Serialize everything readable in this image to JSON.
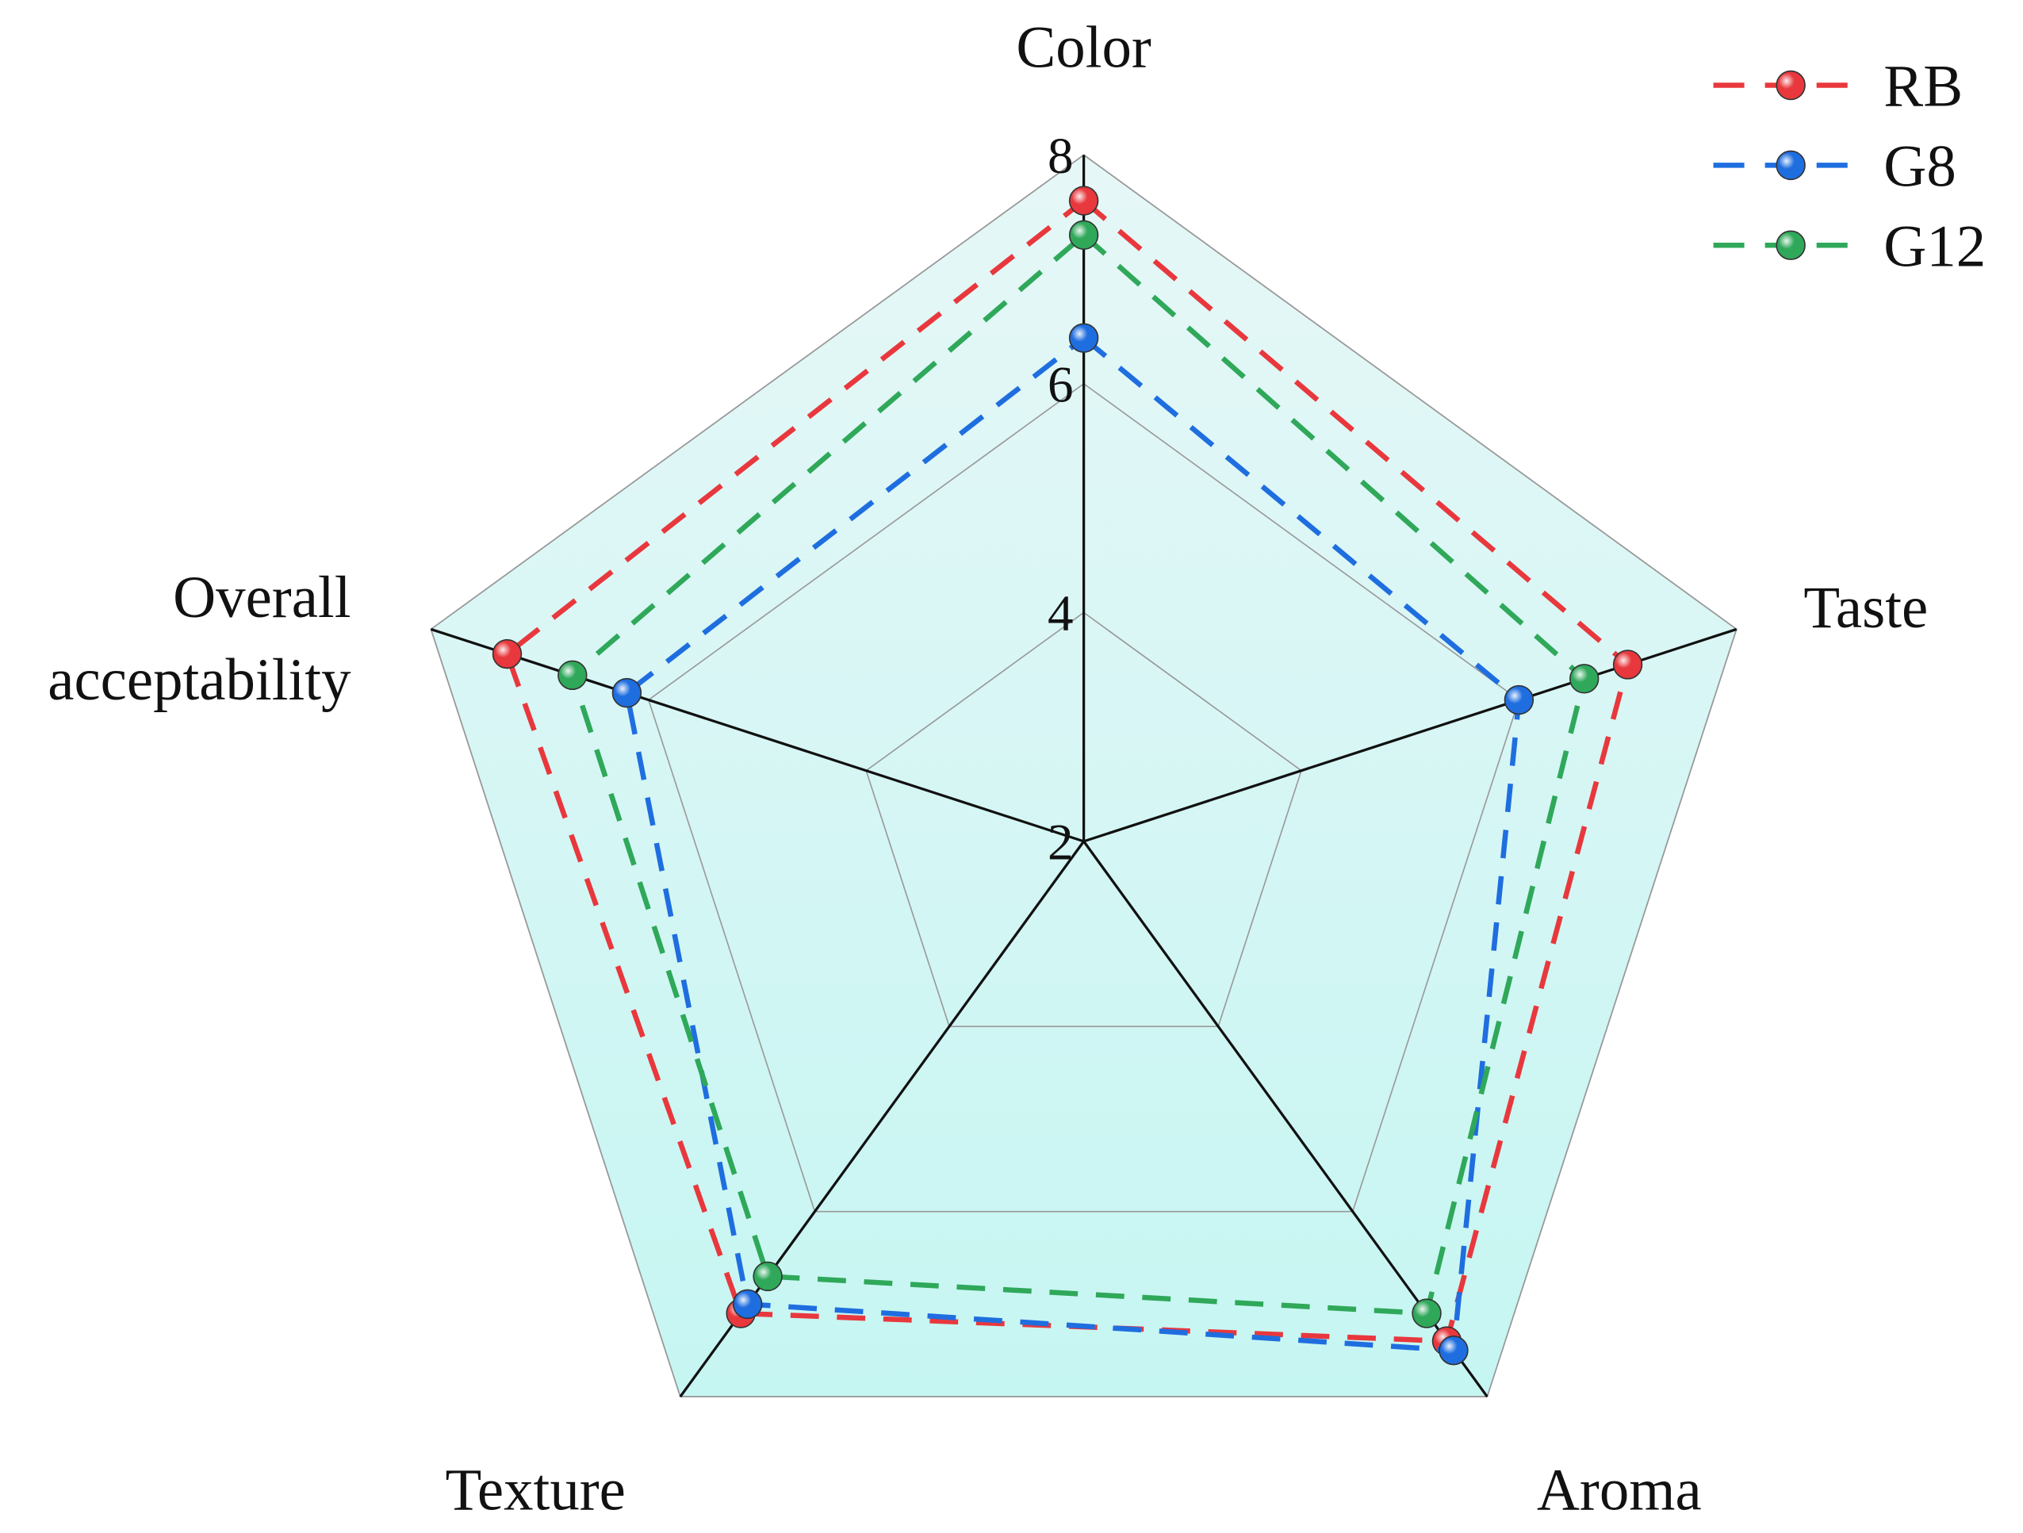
{
  "chart_data": {
    "type": "radar",
    "categories": [
      "Color",
      "Taste",
      "Aroma",
      "Texture",
      "Overall acceptability"
    ],
    "series": [
      {
        "name": "RB",
        "color": "#e8383d",
        "values": [
          7.6,
          7.0,
          7.4,
          7.1,
          7.3
        ]
      },
      {
        "name": "G8",
        "color": "#1f6ee0",
        "values": [
          6.4,
          6.0,
          7.5,
          7.0,
          6.2
        ]
      },
      {
        "name": "G12",
        "color": "#2fa85a",
        "values": [
          7.3,
          6.6,
          7.1,
          6.7,
          6.7
        ]
      }
    ],
    "rlim": [
      2,
      8
    ],
    "rticks": [
      2,
      4,
      6,
      8
    ],
    "grid": true,
    "legend": "upper right"
  }
}
